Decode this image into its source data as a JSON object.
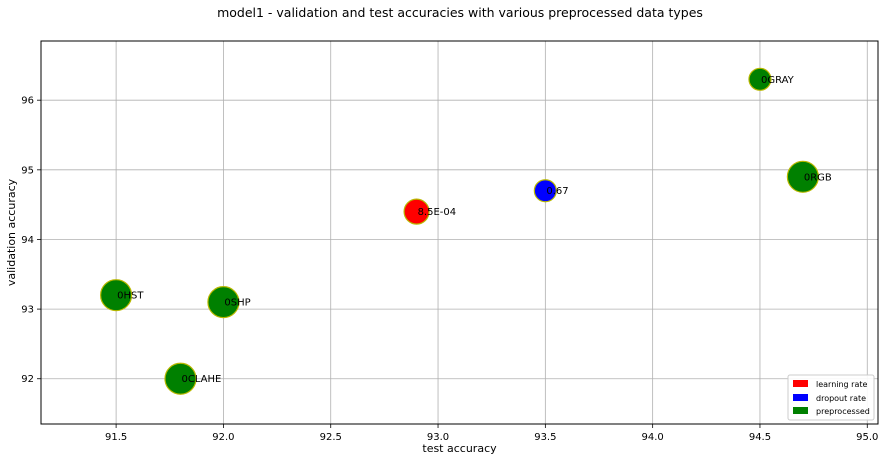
{
  "chart_data": {
    "type": "scatter",
    "title": "model1 - validation and test accuracies with various preprocessed data types",
    "xlabel": "test accuracy",
    "ylabel": "validation accuracy",
    "xlim": [
      91.15,
      95.05
    ],
    "ylim": [
      91.35,
      96.85
    ],
    "xticks": [
      91.5,
      92.0,
      92.5,
      93.0,
      93.5,
      94.0,
      94.5,
      95.0
    ],
    "xtick_labels": [
      "91.5",
      "92.0",
      "92.5",
      "93.0",
      "93.5",
      "94.0",
      "94.5",
      "95.0"
    ],
    "yticks": [
      92,
      93,
      94,
      95,
      96
    ],
    "ytick_labels": [
      "92",
      "93",
      "94",
      "95",
      "96"
    ],
    "grid": true,
    "legend_position": "bottom-right",
    "legend": [
      {
        "label": "learning rate",
        "color": "#ff0000"
      },
      {
        "label": "dropout rate",
        "color": "#0000ff"
      },
      {
        "label": "preprocessed",
        "color": "#008000"
      }
    ],
    "points": [
      {
        "x": 91.5,
        "y": 93.2,
        "label": "0HST",
        "category": "preprocessed",
        "color": "#008000",
        "size": "large"
      },
      {
        "x": 91.8,
        "y": 92.0,
        "label": "0CLAHE",
        "category": "preprocessed",
        "color": "#008000",
        "size": "large"
      },
      {
        "x": 92.0,
        "y": 93.1,
        "label": "0SHP",
        "category": "preprocessed",
        "color": "#008000",
        "size": "large"
      },
      {
        "x": 92.9,
        "y": 94.4,
        "label": "8.5E-04",
        "category": "learning rate",
        "color": "#ff0000",
        "size": "medium"
      },
      {
        "x": 93.5,
        "y": 94.7,
        "label": "0.67",
        "category": "dropout rate",
        "color": "#0000ff",
        "size": "small"
      },
      {
        "x": 94.5,
        "y": 96.3,
        "label": "0GRAY",
        "category": "preprocessed",
        "color": "#008000",
        "size": "small"
      },
      {
        "x": 94.7,
        "y": 94.9,
        "label": "0RGB",
        "category": "preprocessed",
        "color": "#008000",
        "size": "large"
      }
    ]
  }
}
